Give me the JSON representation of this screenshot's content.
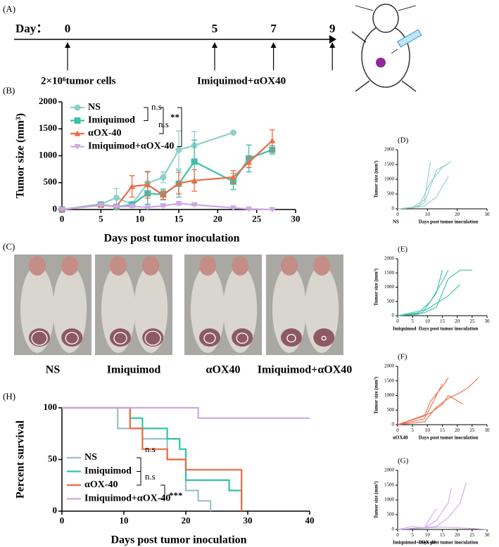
{
  "timeline": {
    "label": "(A)",
    "day_label": "Day：",
    "days": [
      0,
      5,
      7,
      9
    ],
    "events": [
      "2×10⁶tumor cells",
      "Imiquimod+αOX40"
    ]
  },
  "photos": {
    "label": "(C)",
    "groups": [
      "NS",
      "Imiquimod",
      "αOX40",
      "Imiquimod+αOX40"
    ]
  },
  "chart_data": [
    {
      "type": "line",
      "label": "(B)",
      "xlabel": "Days post tumor inoculation",
      "ylabel": "Tumor size (mm³)",
      "xlim": [
        0,
        30
      ],
      "ylim": [
        0,
        2000
      ],
      "xticks": [
        0,
        5,
        10,
        15,
        20,
        25,
        30
      ],
      "yticks": [
        0,
        500,
        1000,
        1500,
        2000
      ],
      "annotations": [
        "n.s",
        "n.s",
        "**"
      ],
      "series": [
        {
          "name": "NS",
          "color": "#8fd0c8",
          "marker": "circle",
          "x": [
            0,
            5,
            7,
            9,
            11,
            13,
            15,
            17,
            22
          ],
          "values": [
            0,
            100,
            220,
            100,
            490,
            600,
            1110,
            1190,
            1430
          ],
          "errors": [
            0,
            20,
            170,
            50,
            200,
            100,
            350,
            260,
            0
          ]
        },
        {
          "name": "Imiquimod",
          "color": "#3ec0a8",
          "marker": "square",
          "x": [
            0,
            5,
            7,
            9,
            11,
            13,
            15,
            17,
            22,
            24,
            27
          ],
          "values": [
            0,
            90,
            50,
            90,
            300,
            280,
            480,
            890,
            520,
            950,
            1110
          ],
          "errors": [
            0,
            20,
            30,
            40,
            200,
            100,
            250,
            400,
            150,
            250,
            80
          ]
        },
        {
          "name": "αOX-40",
          "color": "#ee6b48",
          "marker": "triangle",
          "x": [
            0,
            5,
            7,
            9,
            11,
            13,
            15,
            17,
            22,
            24,
            27
          ],
          "values": [
            0,
            80,
            60,
            430,
            460,
            270,
            490,
            540,
            600,
            880,
            1280
          ],
          "errors": [
            0,
            20,
            30,
            200,
            250,
            80,
            200,
            200,
            120,
            100,
            200
          ]
        },
        {
          "name": "Imiquimod+αOX-40",
          "color": "#cfa8e6",
          "marker": "down-triangle",
          "x": [
            0,
            5,
            7,
            9,
            11,
            13,
            15,
            17,
            22,
            24,
            27
          ],
          "values": [
            0,
            80,
            50,
            60,
            40,
            70,
            110,
            90,
            30,
            10,
            0
          ],
          "errors": [
            0,
            10,
            10,
            20,
            10,
            20,
            30,
            20,
            10,
            5,
            0
          ]
        }
      ]
    },
    {
      "type": "line",
      "drawstyle": "steps-post",
      "label": "(H)",
      "xlabel": "Days post tumor inoculation",
      "ylabel": "Percent survival",
      "xlim": [
        0,
        40
      ],
      "ylim": [
        0,
        100
      ],
      "xticks": [
        0,
        10,
        20,
        30,
        40
      ],
      "yticks": [
        0,
        50,
        100
      ],
      "annotations": [
        "n.s",
        "n.s",
        "***"
      ],
      "series": [
        {
          "name": "NS",
          "color": "#9cc0c4",
          "x": [
            0,
            9,
            13,
            17,
            20,
            22,
            24
          ],
          "values": [
            100,
            80,
            70,
            50,
            20,
            10,
            0
          ]
        },
        {
          "name": "Imiquimod",
          "color": "#2fc4a6",
          "x": [
            0,
            11,
            13,
            17,
            19,
            20,
            27,
            29
          ],
          "values": [
            100,
            90,
            80,
            70,
            60,
            30,
            20,
            0
          ]
        },
        {
          "name": "αOX-40",
          "color": "#ee6a40",
          "x": [
            0,
            11,
            13,
            17,
            20,
            29
          ],
          "values": [
            100,
            80,
            60,
            50,
            40,
            0
          ]
        },
        {
          "name": "Imiquimod+αOX-40",
          "color": "#cba8e6",
          "x": [
            0,
            22,
            40
          ],
          "values": [
            100,
            90,
            90
          ]
        }
      ]
    },
    {
      "type": "line",
      "label": "(D)",
      "group": "NS",
      "xlabel": "Days post tumor inoculation",
      "ylabel": "Tumor size (mm³)",
      "xlim": [
        0,
        30
      ],
      "ylim": [
        0,
        2000
      ],
      "xticks": [
        0,
        10,
        20,
        30
      ],
      "yticks": [
        0,
        500,
        1000,
        1500,
        2000
      ],
      "series": [
        {
          "color": "#8fd0c8",
          "x": [
            0,
            5,
            9,
            11
          ],
          "values": [
            0,
            50,
            300,
            1600
          ]
        },
        {
          "color": "#8fd0c8",
          "x": [
            0,
            5,
            9,
            13,
            18
          ],
          "values": [
            0,
            30,
            200,
            1300,
            1600
          ]
        },
        {
          "color": "#8fd0c8",
          "x": [
            0,
            7,
            11,
            15,
            18
          ],
          "values": [
            0,
            60,
            900,
            1400,
            1600
          ]
        },
        {
          "color": "#8fd0c8",
          "x": [
            0,
            9,
            13,
            17
          ],
          "values": [
            0,
            100,
            400,
            1100
          ]
        }
      ]
    },
    {
      "type": "line",
      "label": "(E)",
      "group": "Imiquimod",
      "xlabel": "Days post tumor inoculation",
      "ylabel": "Tumor size (mm³)",
      "xlim": [
        0,
        30
      ],
      "ylim": [
        0,
        2000
      ],
      "xticks": [
        0,
        5,
        10,
        15,
        20,
        25,
        30
      ],
      "yticks": [
        0,
        500,
        1000,
        1500,
        2000
      ],
      "series": [
        {
          "color": "#3ec0a8",
          "x": [
            0,
            7,
            11,
            15,
            17
          ],
          "values": [
            0,
            100,
            500,
            1200,
            1600
          ]
        },
        {
          "color": "#3ec0a8",
          "x": [
            0,
            9,
            13,
            17,
            21,
            25
          ],
          "values": [
            0,
            100,
            300,
            1300,
            1600,
            1600
          ]
        },
        {
          "color": "#3ec0a8",
          "x": [
            0,
            9,
            13,
            15
          ],
          "values": [
            0,
            200,
            800,
            1600
          ]
        },
        {
          "color": "#3ec0a8",
          "x": [
            0,
            7,
            11,
            17,
            21
          ],
          "values": [
            0,
            50,
            300,
            700,
            1100
          ]
        }
      ]
    },
    {
      "type": "line",
      "label": "(F)",
      "group": "αOX40",
      "xlabel": "Days post tumor inoculation",
      "ylabel": "Tumor size (mm³)",
      "xlim": [
        0,
        30
      ],
      "ylim": [
        0,
        2000
      ],
      "xticks": [
        0,
        5,
        10,
        15,
        20,
        25,
        30
      ],
      "yticks": [
        0,
        500,
        1000,
        1500,
        2000
      ],
      "series": [
        {
          "color": "#ee6b48",
          "x": [
            0,
            9,
            11,
            15,
            17
          ],
          "values": [
            0,
            300,
            800,
            1300,
            1600
          ]
        },
        {
          "color": "#ee6b48",
          "x": [
            0,
            9,
            13,
            17,
            21,
            24,
            27
          ],
          "values": [
            0,
            100,
            600,
            900,
            1100,
            1300,
            1600
          ]
        },
        {
          "color": "#ee6b48",
          "x": [
            0,
            11,
            15,
            17,
            22
          ],
          "values": [
            0,
            400,
            700,
            1000,
            700
          ]
        },
        {
          "color": "#ee6b48",
          "x": [
            0,
            9,
            13,
            15
          ],
          "values": [
            0,
            200,
            1000,
            1400
          ]
        }
      ]
    },
    {
      "type": "line",
      "label": "(G)",
      "group": "Imiquimod+αOX-40",
      "xlabel": "Days post tumor inoculation",
      "ylabel": "Tumor size (mm³)",
      "xlim": [
        0,
        30
      ],
      "ylim": [
        0,
        2000
      ],
      "xticks": [
        0,
        5,
        10,
        15,
        20,
        25,
        30
      ],
      "yticks": [
        0,
        500,
        1000,
        1500,
        2000
      ],
      "series": [
        {
          "color": "#cfa8e6",
          "x": [
            0,
            5,
            9,
            11,
            13
          ],
          "values": [
            0,
            100,
            50,
            400,
            700
          ]
        },
        {
          "color": "#cfa8e6",
          "x": [
            0,
            9,
            13,
            17,
            18
          ],
          "values": [
            0,
            50,
            300,
            900,
            1400
          ]
        },
        {
          "color": "#cfa8e6",
          "x": [
            0,
            13,
            17,
            21,
            23
          ],
          "values": [
            0,
            100,
            400,
            900,
            1600
          ]
        },
        {
          "color": "#cfa8e6",
          "x": [
            0,
            9,
            15,
            22,
            30
          ],
          "values": [
            0,
            50,
            80,
            50,
            0
          ]
        }
      ]
    }
  ]
}
